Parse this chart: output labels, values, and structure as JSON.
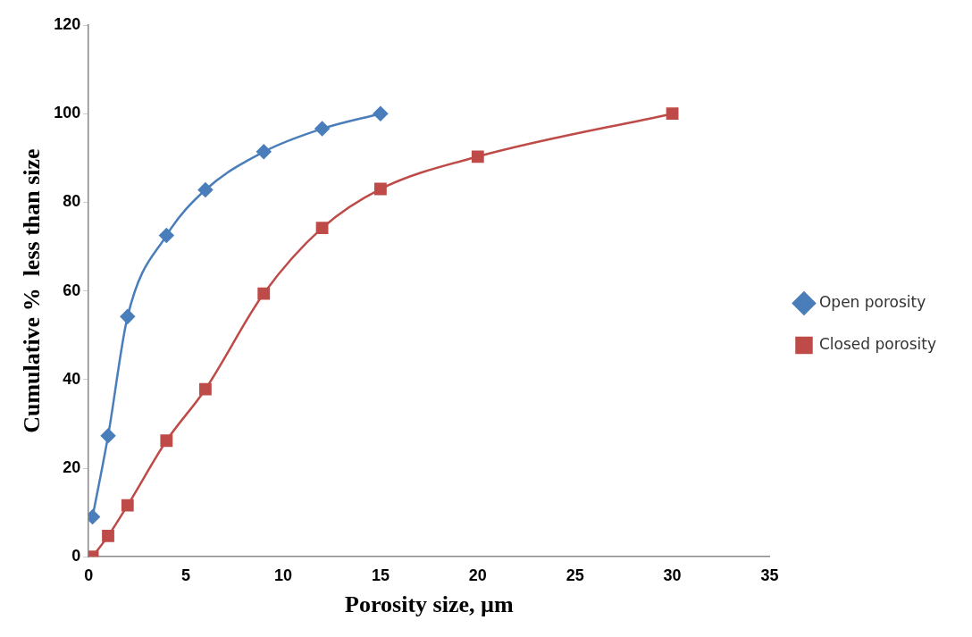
{
  "chart_data": {
    "type": "line",
    "xlabel": "Porosity size, µm",
    "ylabel": "Cumulative %  less than size",
    "xlim": [
      0,
      35
    ],
    "xticks": [
      0,
      5,
      10,
      15,
      20,
      25,
      30,
      35
    ],
    "ylim": [
      0,
      120
    ],
    "yticks": [
      0,
      20,
      40,
      60,
      80,
      100,
      120
    ],
    "grid": false,
    "legend": "right",
    "series": [
      {
        "name": "Open porosity",
        "color": "#4a7ebb",
        "marker": "diamond",
        "x": [
          0.2,
          1,
          2,
          4,
          6,
          9,
          12,
          15
        ],
        "values": [
          9,
          27.3,
          54.2,
          72.5,
          82.8,
          91.4,
          96.6,
          100
        ]
      },
      {
        "name": "Closed porosity",
        "color": "#be4b48",
        "marker": "square",
        "x": [
          0.2,
          1,
          2,
          4,
          6,
          9,
          12,
          15,
          20,
          30
        ],
        "values": [
          0,
          4.7,
          11.6,
          26.2,
          37.8,
          59.4,
          74.2,
          83,
          90.3,
          100
        ]
      }
    ]
  }
}
